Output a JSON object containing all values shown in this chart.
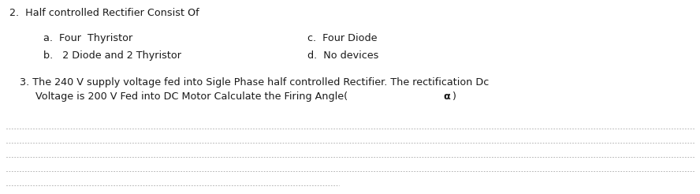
{
  "bg_color": "#ffffff",
  "text_color": "#1a1a1a",
  "line2_heading": "2.  Half controlled Rectifier Consist Of",
  "option_a": "a.  Four  Thyristor",
  "option_b": "b.   2 Diode and 2 Thyristor",
  "option_c": "c.  Four Diode",
  "option_d": "d.  No devices",
  "question3_line1": "3. The 240 V supply voltage fed into Sigle Phase half controlled Rectifier. The rectification Dc",
  "question3_line2_before": "     Voltage is 200 V Fed into DC Motor Calculate the Firing Angle(",
  "question3_line2_alpha": "α",
  "question3_line2_after": ")",
  "dotted_line_color": "#b0b0b0",
  "dotted_line_lw": 0.7,
  "font_size": 9.2
}
